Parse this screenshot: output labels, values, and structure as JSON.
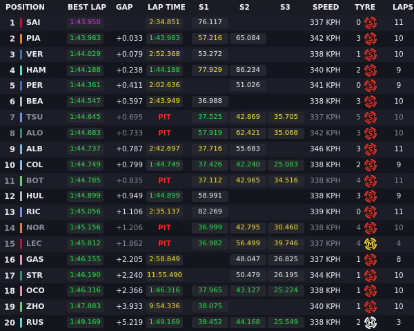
{
  "header": {
    "position": "POSITION",
    "best_lap": "BEST LAP",
    "gap": "GAP",
    "lap_time": "LAP TIME",
    "s1": "S1",
    "s2": "S2",
    "s3": "S3",
    "speed": "SPEED",
    "tyre": "TYRE",
    "laps": "LAPS"
  },
  "colors": {
    "green": "#25e04a",
    "purple": "#d23ce8",
    "yellow": "#f2e22b",
    "pit": "#ff2020",
    "tyre_soft": "#e8312a",
    "tyre_medium": "#f2d21b",
    "tyre_hard": "#ffffff"
  },
  "rows": [
    {
      "pos": "1",
      "driver": "SAI",
      "team_color": "#e8002d",
      "best_lap": "1:43.950",
      "best_color": "purple",
      "gap": "",
      "lap_time": "2:34.851",
      "lap_color": "yellow",
      "s1": "76.117",
      "s1_color": "white",
      "s2": "",
      "s2_color": "empty",
      "s3": "",
      "s3_color": "empty",
      "speed": "337 KPH",
      "stops": "0",
      "tyre": "S",
      "tyre_type": "soft",
      "laps": "11",
      "out": false
    },
    {
      "pos": "2",
      "driver": "PIA",
      "team_color": "#ff8000",
      "best_lap": "1:43.983",
      "best_color": "green",
      "gap": "+0.033",
      "lap_time": "1:43.983",
      "lap_color": "green",
      "s1": "57.216",
      "s1_color": "yellow",
      "s2": "65.084",
      "s2_color": "white",
      "s3": "",
      "s3_color": "empty",
      "speed": "342 KPH",
      "stops": "3",
      "tyre": "S",
      "tyre_type": "soft",
      "laps": "10",
      "out": false
    },
    {
      "pos": "3",
      "driver": "VER",
      "team_color": "#3671c6",
      "best_lap": "1:44.029",
      "best_color": "green",
      "gap": "+0.079",
      "lap_time": "2:52.368",
      "lap_color": "yellow",
      "s1": "53.272",
      "s1_color": "white",
      "s2": "",
      "s2_color": "empty",
      "s3": "",
      "s3_color": "empty",
      "speed": "338 KPH",
      "stops": "1",
      "tyre": "S",
      "tyre_type": "soft",
      "laps": "10",
      "out": false
    },
    {
      "pos": "4",
      "driver": "HAM",
      "team_color": "#27f4d2",
      "best_lap": "1:44.188",
      "best_color": "green",
      "gap": "+0.238",
      "lap_time": "1:44.188",
      "lap_color": "green",
      "s1": "77.929",
      "s1_color": "yellow",
      "s2": "86.234",
      "s2_color": "white",
      "s3": "",
      "s3_color": "empty",
      "speed": "340 KPH",
      "stops": "2",
      "tyre": "S",
      "tyre_type": "soft",
      "laps": "9",
      "out": false
    },
    {
      "pos": "5",
      "driver": "PER",
      "team_color": "#3671c6",
      "best_lap": "1:44.361",
      "best_color": "green",
      "gap": "+0.411",
      "lap_time": "2:02.636",
      "lap_color": "yellow",
      "s1": "",
      "s1_color": "empty",
      "s2": "51.026",
      "s2_color": "white",
      "s3": "",
      "s3_color": "empty",
      "speed": "341 KPH",
      "stops": "0",
      "tyre": "S",
      "tyre_type": "soft",
      "laps": "9",
      "out": false
    },
    {
      "pos": "6",
      "driver": "BEA",
      "team_color": "#b6babd",
      "best_lap": "1:44.547",
      "best_color": "green",
      "gap": "+0.597",
      "lap_time": "2:43.949",
      "lap_color": "yellow",
      "s1": "36.988",
      "s1_color": "white",
      "s2": "",
      "s2_color": "empty",
      "s3": "",
      "s3_color": "empty",
      "speed": "338 KPH",
      "stops": "3",
      "tyre": "S",
      "tyre_type": "soft",
      "laps": "10",
      "out": false
    },
    {
      "pos": "7",
      "driver": "TSU",
      "team_color": "#6692ff",
      "best_lap": "1:44.645",
      "best_color": "green",
      "gap": "+0.695",
      "lap_time": "PIT",
      "lap_color": "pit",
      "s1": "37.525",
      "s1_color": "green",
      "s2": "42.869",
      "s2_color": "yellow",
      "s3": "35.705",
      "s3_color": "yellow",
      "speed": "337 KPH",
      "stops": "5",
      "tyre": "S",
      "tyre_type": "soft",
      "laps": "10",
      "out": true
    },
    {
      "pos": "8",
      "driver": "ALO",
      "team_color": "#229971",
      "best_lap": "1:44.683",
      "best_color": "green",
      "gap": "+0.733",
      "lap_time": "PIT",
      "lap_color": "pit",
      "s1": "57.919",
      "s1_color": "green",
      "s2": "62.421",
      "s2_color": "yellow",
      "s3": "35.068",
      "s3_color": "yellow",
      "speed": "342 KPH",
      "stops": "3",
      "tyre": "S",
      "tyre_type": "soft",
      "laps": "10",
      "out": true
    },
    {
      "pos": "9",
      "driver": "ALB",
      "team_color": "#64c4ff",
      "best_lap": "1:44.737",
      "best_color": "green",
      "gap": "+0.787",
      "lap_time": "2:42.697",
      "lap_color": "yellow",
      "s1": "37.716",
      "s1_color": "yellow",
      "s2": "55.683",
      "s2_color": "white",
      "s3": "",
      "s3_color": "empty",
      "speed": "346 KPH",
      "stops": "3",
      "tyre": "S",
      "tyre_type": "soft",
      "laps": "11",
      "out": false
    },
    {
      "pos": "10",
      "driver": "COL",
      "team_color": "#64c4ff",
      "best_lap": "1:44.749",
      "best_color": "green",
      "gap": "+0.799",
      "lap_time": "1:44.749",
      "lap_color": "green",
      "s1": "37.426",
      "s1_color": "green",
      "s2": "42.240",
      "s2_color": "green",
      "s3": "25.083",
      "s3_color": "green",
      "speed": "338 KPH",
      "stops": "2",
      "tyre": "S",
      "tyre_type": "soft",
      "laps": "9",
      "out": false
    },
    {
      "pos": "11",
      "driver": "BOT",
      "team_color": "#52e252",
      "best_lap": "1:44.785",
      "best_color": "green",
      "gap": "+0.835",
      "lap_time": "PIT",
      "lap_color": "pit",
      "s1": "37.112",
      "s1_color": "yellow",
      "s2": "42.965",
      "s2_color": "yellow",
      "s3": "34.516",
      "s3_color": "yellow",
      "speed": "338 KPH",
      "stops": "4",
      "tyre": "S",
      "tyre_type": "soft",
      "laps": "11",
      "out": true
    },
    {
      "pos": "12",
      "driver": "HUL",
      "team_color": "#b6babd",
      "best_lap": "1:44.899",
      "best_color": "green",
      "gap": "+0.949",
      "lap_time": "1:44.899",
      "lap_color": "green",
      "s1": "58.991",
      "s1_color": "white",
      "s2": "",
      "s2_color": "empty",
      "s3": "",
      "s3_color": "empty",
      "speed": "338 KPH",
      "stops": "3",
      "tyre": "S",
      "tyre_type": "soft",
      "laps": "9",
      "out": false
    },
    {
      "pos": "13",
      "driver": "RIC",
      "team_color": "#6692ff",
      "best_lap": "1:45.056",
      "best_color": "green",
      "gap": "+1.106",
      "lap_time": "2:35.137",
      "lap_color": "yellow",
      "s1": "82.269",
      "s1_color": "white",
      "s2": "",
      "s2_color": "empty",
      "s3": "",
      "s3_color": "empty",
      "speed": "339 KPH",
      "stops": "0",
      "tyre": "S",
      "tyre_type": "soft",
      "laps": "11",
      "out": false
    },
    {
      "pos": "14",
      "driver": "NOR",
      "team_color": "#ff8000",
      "best_lap": "1:45.156",
      "best_color": "green",
      "gap": "+1.206",
      "lap_time": "PIT",
      "lap_color": "pit",
      "s1": "36.999",
      "s1_color": "green",
      "s2": "42.795",
      "s2_color": "yellow",
      "s3": "30.460",
      "s3_color": "yellow",
      "speed": "338 KPH",
      "stops": "4",
      "tyre": "S",
      "tyre_type": "soft",
      "laps": "10",
      "out": true
    },
    {
      "pos": "15",
      "driver": "LEC",
      "team_color": "#e8002d",
      "best_lap": "1:45.812",
      "best_color": "green",
      "gap": "+1.862",
      "lap_time": "PIT",
      "lap_color": "pit",
      "s1": "36.982",
      "s1_color": "green",
      "s2": "56.499",
      "s2_color": "yellow",
      "s3": "39.746",
      "s3_color": "yellow",
      "speed": "337 KPH",
      "stops": "4",
      "tyre": "M",
      "tyre_type": "medium",
      "laps": "4",
      "out": true
    },
    {
      "pos": "16",
      "driver": "GAS",
      "team_color": "#ff87bc",
      "best_lap": "1:46.155",
      "best_color": "green",
      "gap": "+2.205",
      "lap_time": "2:58.849",
      "lap_color": "yellow",
      "s1": "",
      "s1_color": "empty",
      "s2": "48.047",
      "s2_color": "white",
      "s3": "26.825",
      "s3_color": "white",
      "speed": "337 KPH",
      "stops": "1",
      "tyre": "S",
      "tyre_type": "soft",
      "laps": "8",
      "out": false
    },
    {
      "pos": "17",
      "driver": "STR",
      "team_color": "#229971",
      "best_lap": "1:46.190",
      "best_color": "green",
      "gap": "+2.240",
      "lap_time": "11:55.490",
      "lap_color": "yellow",
      "s1": "",
      "s1_color": "empty",
      "s2": "50.479",
      "s2_color": "white",
      "s3": "26.195",
      "s3_color": "white",
      "speed": "344 KPH",
      "stops": "1",
      "tyre": "S",
      "tyre_type": "soft",
      "laps": "10",
      "out": false
    },
    {
      "pos": "18",
      "driver": "OCO",
      "team_color": "#ff87bc",
      "best_lap": "1:46.316",
      "best_color": "green",
      "gap": "+2.366",
      "lap_time": "1:46.316",
      "lap_color": "green",
      "s1": "37.965",
      "s1_color": "green",
      "s2": "43.127",
      "s2_color": "green",
      "s3": "25.224",
      "s3_color": "green",
      "speed": "338 KPH",
      "stops": "1",
      "tyre": "S",
      "tyre_type": "soft",
      "laps": "10",
      "out": false
    },
    {
      "pos": "19",
      "driver": "ZHO",
      "team_color": "#52e252",
      "best_lap": "1:47.883",
      "best_color": "green",
      "gap": "+3.933",
      "lap_time": "9:54.336",
      "lap_color": "yellow",
      "s1": "38.075",
      "s1_color": "green",
      "s2": "",
      "s2_color": "empty",
      "s3": "",
      "s3_color": "empty",
      "speed": "340 KPH",
      "stops": "1",
      "tyre": "S",
      "tyre_type": "soft",
      "laps": "10",
      "out": false
    },
    {
      "pos": "20",
      "driver": "RUS",
      "team_color": "#27f4d2",
      "best_lap": "1:49.169",
      "best_color": "green",
      "gap": "+5.219",
      "lap_time": "1:49.169",
      "lap_color": "green",
      "s1": "39.452",
      "s1_color": "green",
      "s2": "44.168",
      "s2_color": "green",
      "s3": "25.549",
      "s3_color": "green",
      "speed": "338 KPH",
      "stops": "2",
      "tyre": "H",
      "tyre_type": "hard",
      "laps": "3",
      "out": false
    }
  ]
}
